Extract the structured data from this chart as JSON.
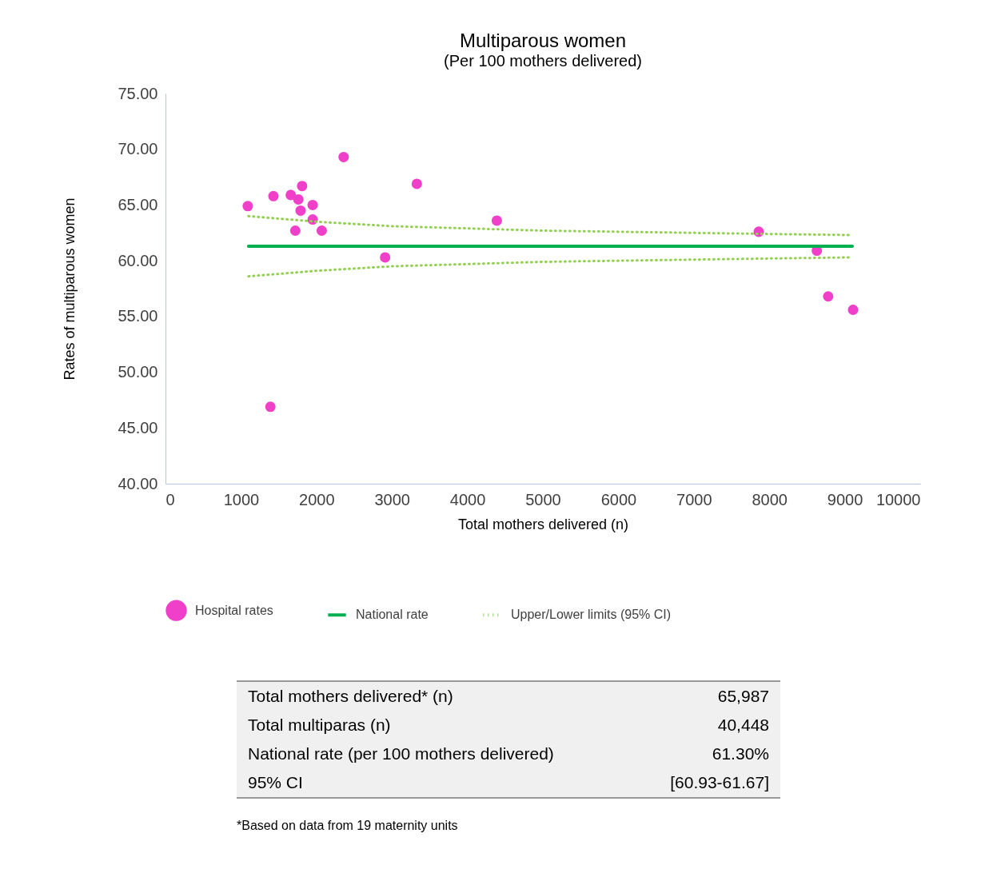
{
  "chart_data": {
    "type": "scatter",
    "title": "Multiparous women",
    "subtitle": "(Per 100 mothers delivered)",
    "xlabel": "Total mothers delivered (n)",
    "ylabel": "Rates of multiparous women",
    "xlim": [
      0,
      10000
    ],
    "xticks": [
      0,
      1000,
      2000,
      3000,
      4000,
      5000,
      6000,
      7000,
      8000,
      9000,
      10000
    ],
    "ylim": [
      40,
      75
    ],
    "yticks": [
      {
        "value": 40,
        "label": "40.00"
      },
      {
        "value": 45,
        "label": "45.00"
      },
      {
        "value": 50,
        "label": "50.00"
      },
      {
        "value": 55,
        "label": "55.00"
      },
      {
        "value": 60,
        "label": "60.00"
      },
      {
        "value": 65,
        "label": "65.00"
      },
      {
        "value": 70,
        "label": "70.00"
      },
      {
        "value": 75,
        "label": "75.00"
      }
    ],
    "grid": false,
    "legend": "bottom",
    "marker": "circle",
    "series": [
      {
        "name": "Hospital rates",
        "color": "#f03fc8",
        "x": [
          1090,
          1430,
          1660,
          1760,
          1810,
          1950,
          1790,
          1950,
          1720,
          2070,
          2360,
          2910,
          3330,
          4390,
          7860,
          8630,
          8780,
          9110,
          1390
        ],
        "values": [
          64.9,
          65.8,
          65.9,
          65.5,
          66.7,
          65.0,
          64.5,
          63.7,
          62.7,
          62.7,
          69.3,
          60.3,
          66.9,
          63.6,
          62.6,
          60.9,
          56.8,
          55.6,
          46.9
        ]
      },
      {
        "name": "National rate",
        "type": "line",
        "line_style": "solid",
        "marker": "none",
        "color": "#00b050",
        "x": [
          1100,
          9100
        ],
        "values": [
          61.3,
          61.3
        ]
      },
      {
        "name": "Upper/Lower limits (95% CI)",
        "type": "line",
        "line_style": "dotted",
        "marker": "none",
        "color": "#92d050",
        "x": [
          1100,
          2000,
          3000,
          4000,
          5000,
          6000,
          7000,
          8000,
          9100
        ],
        "values": [
          64.0,
          63.5,
          63.1,
          62.9,
          62.7,
          62.6,
          62.5,
          62.4,
          62.3
        ]
      },
      {
        "type": "line",
        "line_style": "dotted",
        "marker": "none",
        "color": "#92d050",
        "x": [
          1100,
          2000,
          3000,
          4000,
          5000,
          6000,
          7000,
          8000,
          9100
        ],
        "values": [
          58.6,
          59.1,
          59.5,
          59.7,
          59.9,
          60.0,
          60.1,
          60.2,
          60.3
        ]
      }
    ],
    "annotations": [
      "Total mothers delivered* (n)",
      "65,987",
      "Total multiparas (n)",
      "40,448",
      "National rate (per 100 mothers delivered)",
      "61.30%",
      "95% CI",
      "[60.93-61.67]",
      "*Based on data from 19 maternity units"
    ]
  }
}
